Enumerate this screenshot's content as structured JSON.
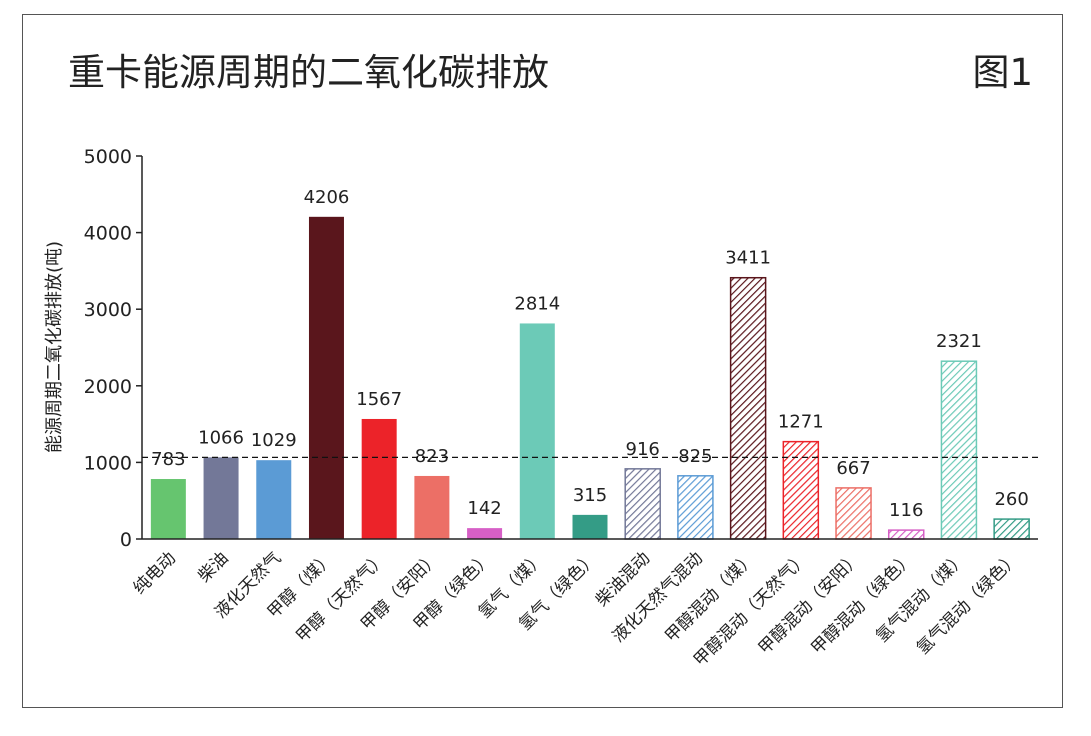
{
  "header": {
    "title": "重卡能源周期的二氧化碳排放",
    "figure_label": "图1"
  },
  "colors": {
    "纯电动": "#66c56f",
    "柴油": "#737898",
    "液化天然气": "#5b9bd5",
    "甲醇（煤）": "#5a161c",
    "甲醇（天然气）": "#ec2329",
    "甲醇（安阳）": "#ec6f66",
    "甲醇（绿色）": "#d65fc6",
    "氢气（煤）": "#6ccab7",
    "氢气（绿色）": "#349c86"
  },
  "chart_data": {
    "type": "bar",
    "title": "重卡能源周期的二氧化碳排放",
    "xlabel": "",
    "ylabel": "能源周期二氧化碳排放(吨)",
    "ylim": [
      0,
      5000
    ],
    "yticks": [
      0,
      1000,
      2000,
      3000,
      4000,
      5000
    ],
    "reference_line": {
      "value": 1066,
      "style": "dashed"
    },
    "grid": false,
    "legend": "none",
    "categories": [
      "纯电动",
      "柴油",
      "液化天然气",
      "甲醇（煤）",
      "甲醇（天然气）",
      "甲醇（安阳）",
      "甲醇（绿色）",
      "氢气（煤）",
      "氢气（绿色）",
      "柴油混动",
      "液化天然气混动",
      "甲醇混动（煤）",
      "甲醇混动（天然气）",
      "甲醇混动（安阳）",
      "甲醇混动（绿色）",
      "氢气混动（煤）",
      "氢气混动（绿色）"
    ],
    "values": [
      783,
      1066,
      1029,
      4206,
      1567,
      823,
      142,
      2814,
      315,
      916,
      825,
      3411,
      1271,
      667,
      116,
      2321,
      260
    ],
    "value_labels": [
      "783",
      "1066",
      "1029",
      "4206",
      "1567",
      "823",
      "142",
      "2814",
      "315",
      "916",
      "825",
      "3411",
      "1271",
      "667",
      "116",
      "2321",
      "260"
    ],
    "bar_styles": [
      "solid",
      "solid",
      "solid",
      "solid",
      "solid",
      "solid",
      "solid",
      "solid",
      "solid",
      "hatched",
      "hatched",
      "hatched",
      "hatched",
      "hatched",
      "hatched",
      "hatched",
      "hatched"
    ],
    "bar_colors": [
      "#66c56f",
      "#737898",
      "#5b9bd5",
      "#5a161c",
      "#ec2329",
      "#ec6f66",
      "#d65fc6",
      "#6ccab7",
      "#349c86",
      "#737898",
      "#5b9bd5",
      "#5a161c",
      "#ec2329",
      "#ec6f66",
      "#d65fc6",
      "#6ccab7",
      "#349c86"
    ]
  }
}
